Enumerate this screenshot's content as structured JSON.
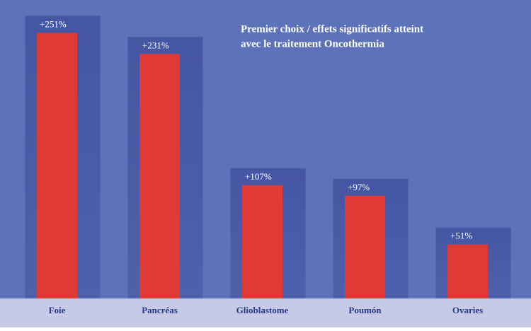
{
  "chart_data": {
    "type": "bar",
    "title": [
      "Premier choix / effets significatifs  atteint",
      "avec le traitement Oncothermia"
    ],
    "categories": [
      "Foie",
      "Pancréas",
      "Glioblastome",
      "Poumón",
      "Ovaries"
    ],
    "values": [
      251,
      231,
      107,
      97,
      51
    ],
    "value_labels": [
      "+251%",
      "+231%",
      "+107%",
      "+97%",
      "+51%"
    ],
    "color": "#e03a35",
    "ylim": [
      0,
      282
    ]
  }
}
